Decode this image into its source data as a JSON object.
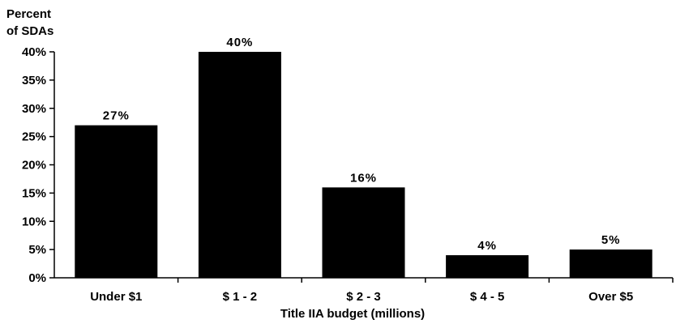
{
  "chart_data": {
    "type": "bar",
    "title": "",
    "ylabel_lines": [
      "Percent",
      "of SDAs"
    ],
    "xlabel": "Title IIA budget (millions)",
    "categories": [
      "Under $1",
      "$ 1 - 2",
      "$ 2 - 3",
      "$ 4 - 5",
      "Over $5"
    ],
    "values": [
      27,
      40,
      16,
      4,
      5
    ],
    "data_labels": [
      "27%",
      "40%",
      "16%",
      "4%",
      "5%"
    ],
    "yticks": [
      "0%",
      "5%",
      "10%",
      "15%",
      "20%",
      "25%",
      "30%",
      "35%",
      "40%"
    ],
    "ylim": [
      0,
      40
    ],
    "grid": false,
    "legend": "none",
    "bar_color": "#000000"
  }
}
